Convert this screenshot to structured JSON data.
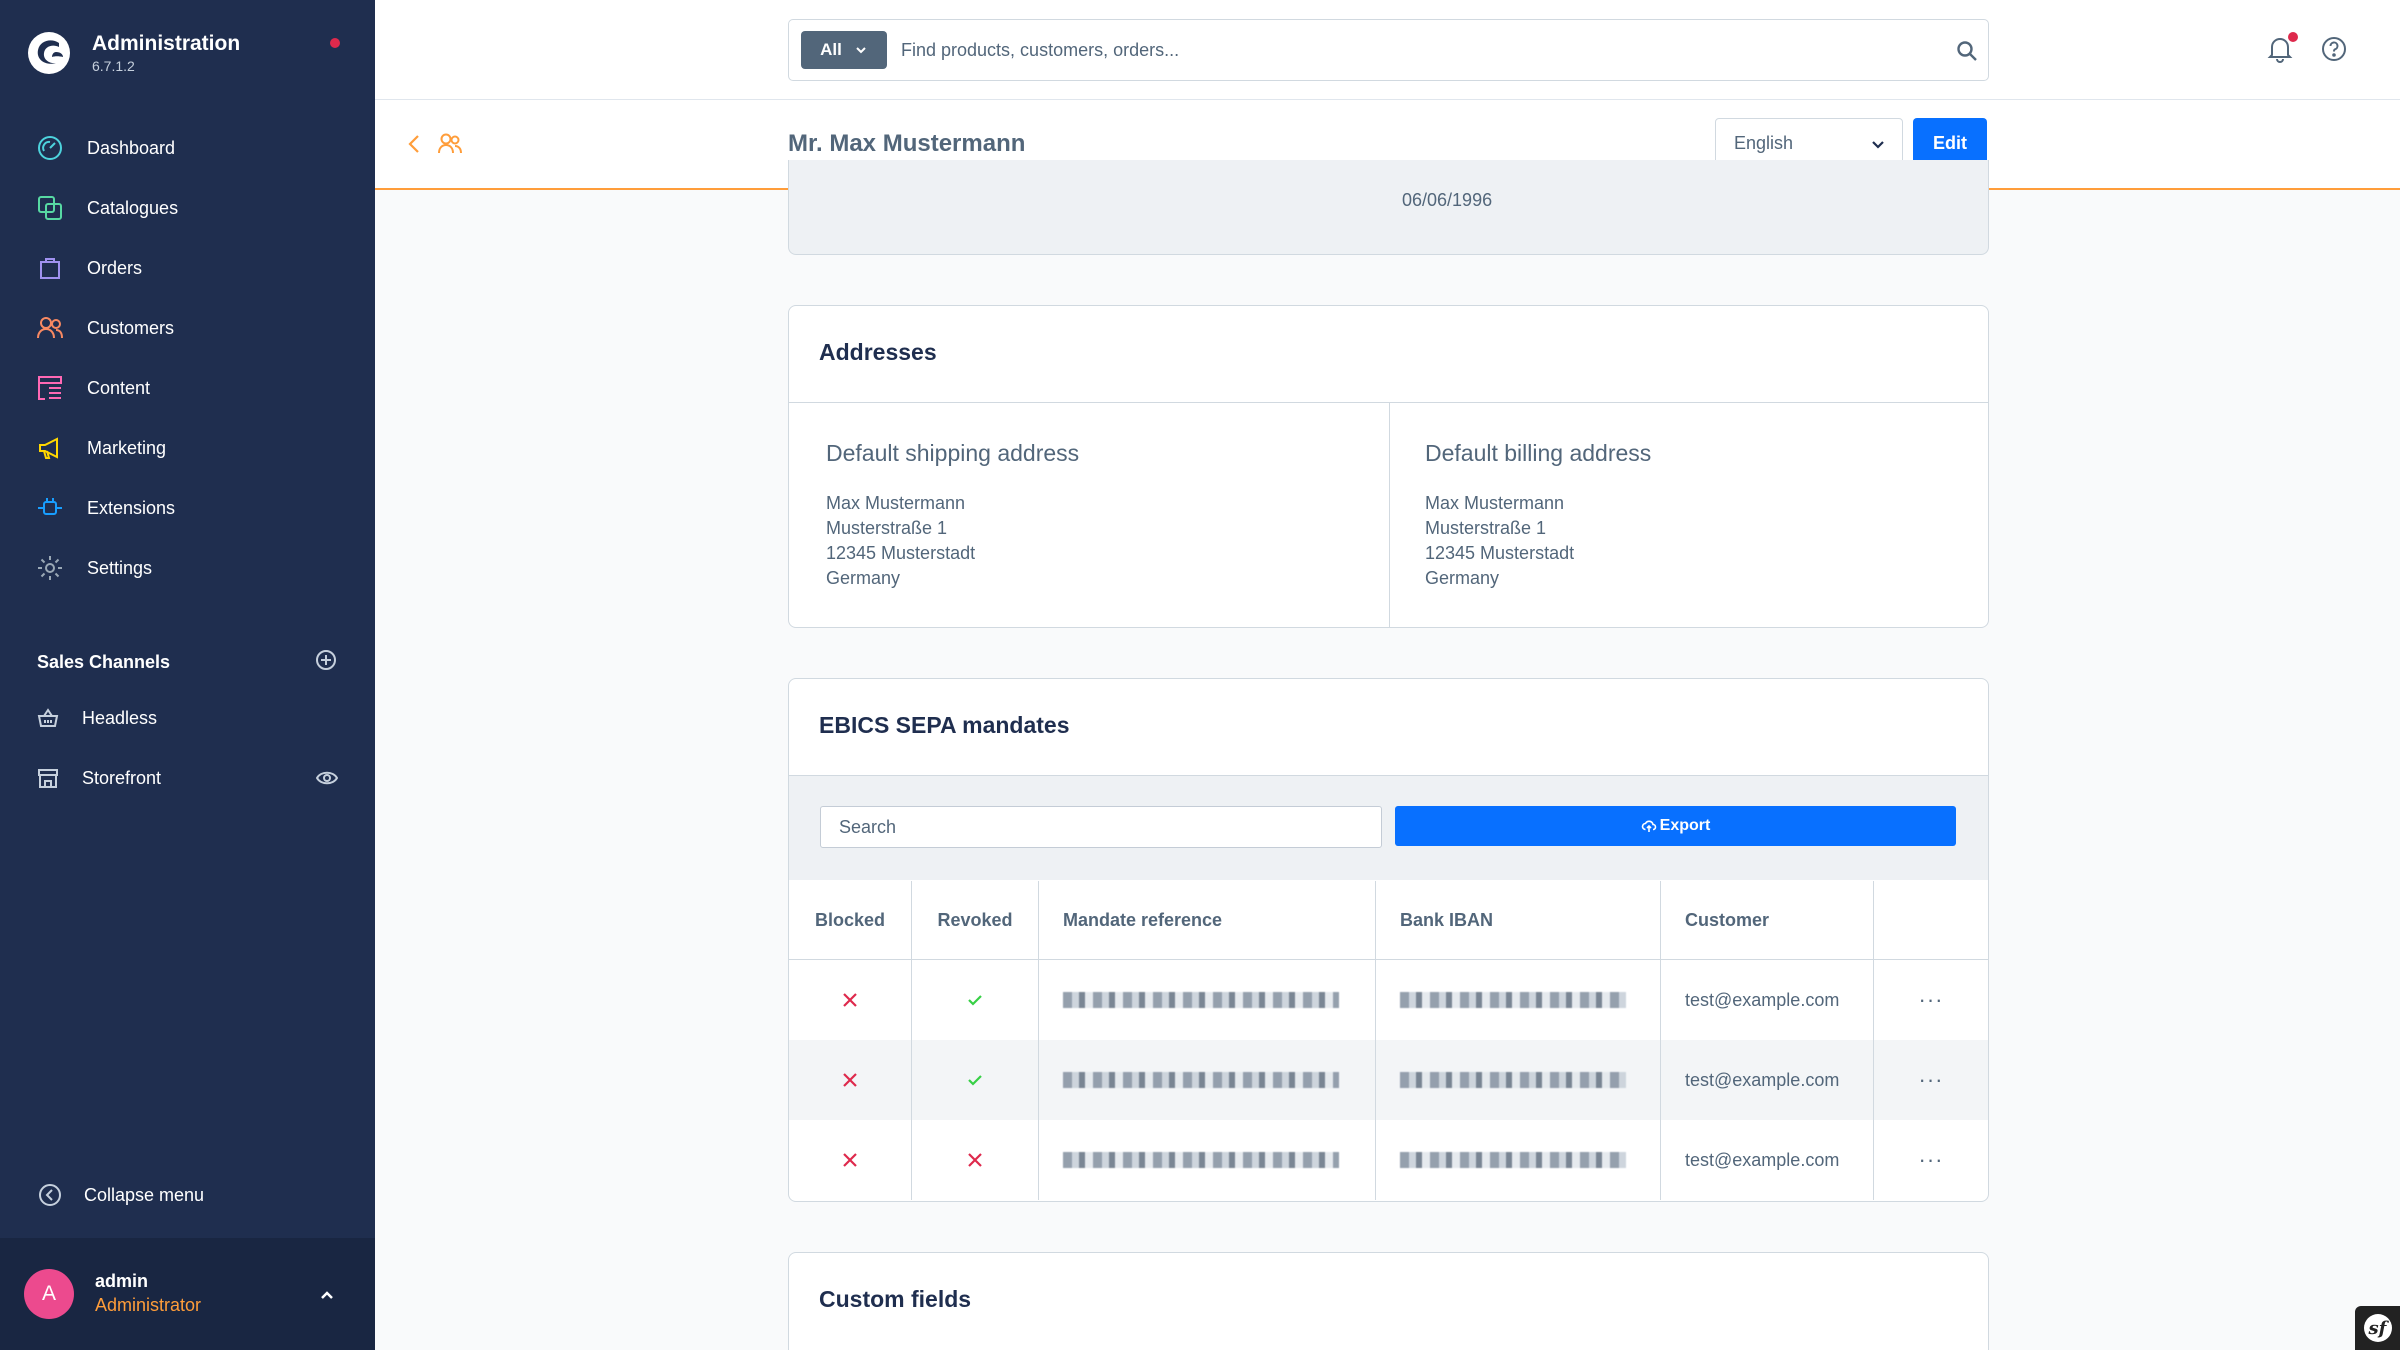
{
  "app": {
    "title": "Administration",
    "version": "6.7.1.2"
  },
  "nav": {
    "items": [
      {
        "label": "Dashboard",
        "icon": "dashboard-icon",
        "color": "#4dd3dd"
      },
      {
        "label": "Catalogues",
        "icon": "catalogue-icon",
        "color": "#57d9a3"
      },
      {
        "label": "Orders",
        "icon": "orders-icon",
        "color": "#a092f0"
      },
      {
        "label": "Customers",
        "icon": "customers-icon",
        "color": "#f88962"
      },
      {
        "label": "Content",
        "icon": "content-icon",
        "color": "#ff68b4"
      },
      {
        "label": "Marketing",
        "icon": "marketing-icon",
        "color": "#ffd700"
      },
      {
        "label": "Extensions",
        "icon": "extensions-icon",
        "color": "#189eff"
      },
      {
        "label": "Settings",
        "icon": "settings-icon",
        "color": "#9aa8b5"
      }
    ]
  },
  "sales_channels": {
    "title": "Sales Channels",
    "items": [
      {
        "label": "Headless",
        "icon": "basket-icon"
      },
      {
        "label": "Storefront",
        "icon": "storefront-icon"
      }
    ]
  },
  "sidebar_footer": {
    "collapse_label": "Collapse menu",
    "user_initial": "A",
    "user_name": "admin",
    "user_role": "Administrator"
  },
  "search": {
    "type_label": "All",
    "placeholder": "Find products, customers, orders..."
  },
  "smartbar": {
    "title": "Mr. Max Mustermann",
    "language": "English",
    "edit_label": "Edit"
  },
  "customer": {
    "birthday": "06/06/1996"
  },
  "addresses": {
    "title": "Addresses",
    "shipping": {
      "heading": "Default shipping address",
      "lines": [
        "Max Mustermann",
        "Musterstraße 1",
        "12345 Musterstadt",
        "Germany"
      ]
    },
    "billing": {
      "heading": "Default billing address",
      "lines": [
        "Max Mustermann",
        "Musterstraße 1",
        "12345 Musterstadt",
        "Germany"
      ]
    }
  },
  "sepa": {
    "title": "EBICS SEPA mandates",
    "search_placeholder": "Search",
    "export_label": "Export",
    "columns": [
      "Blocked",
      "Revoked",
      "Mandate reference",
      "Bank IBAN",
      "Customer"
    ],
    "rows": [
      {
        "blocked": false,
        "revoked": true,
        "customer": "test@example.com"
      },
      {
        "blocked": false,
        "revoked": true,
        "customer": "test@example.com"
      },
      {
        "blocked": false,
        "revoked": false,
        "customer": "test@example.com"
      }
    ],
    "action_label": "···"
  },
  "custom_fields": {
    "title": "Custom fields"
  },
  "colors": {
    "sidebar": "#1f2e4f",
    "accent": "#0870ff",
    "orange": "#ff9d3a",
    "danger": "#de294c",
    "success": "#37d046"
  }
}
